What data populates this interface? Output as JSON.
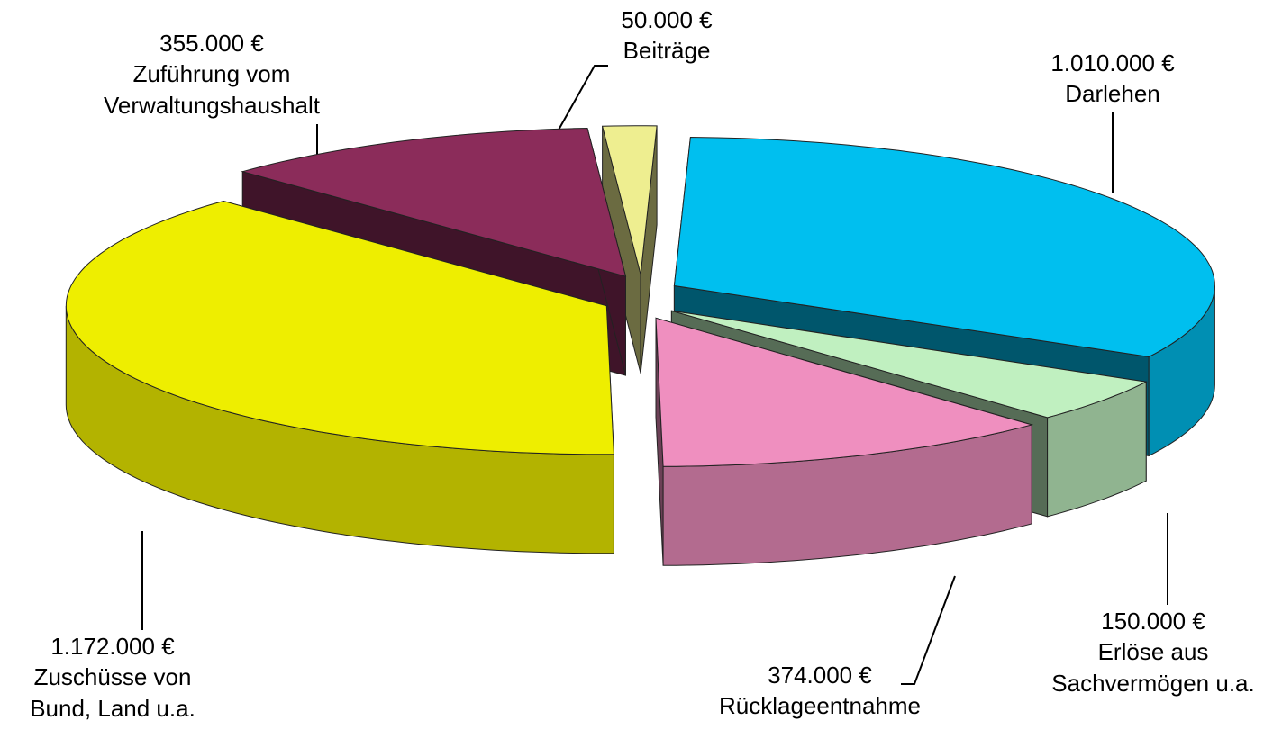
{
  "chart_data": {
    "type": "pie3d",
    "categories": [
      "Darlehen",
      "Erlöse aus\nSachvermögen u.a.",
      "Rücklageentnahme",
      "Zuschüsse von\nBund, Land u.a.",
      "Zuführung vom\nVerwaltungshaushalt",
      "Beiträge"
    ],
    "values": [
      1010000,
      150000,
      374000,
      1172000,
      355000,
      50000
    ],
    "value_labels": [
      "1.010.000 €",
      "150.000 €",
      "374.000 €",
      "1.172.000 €",
      "355.000 €",
      "50.000 €"
    ],
    "colors": [
      "#00bfef",
      "#c0f0c0",
      "#ef8fbf",
      "#eeee00",
      "#8b2c5a",
      "#eeee90"
    ]
  }
}
